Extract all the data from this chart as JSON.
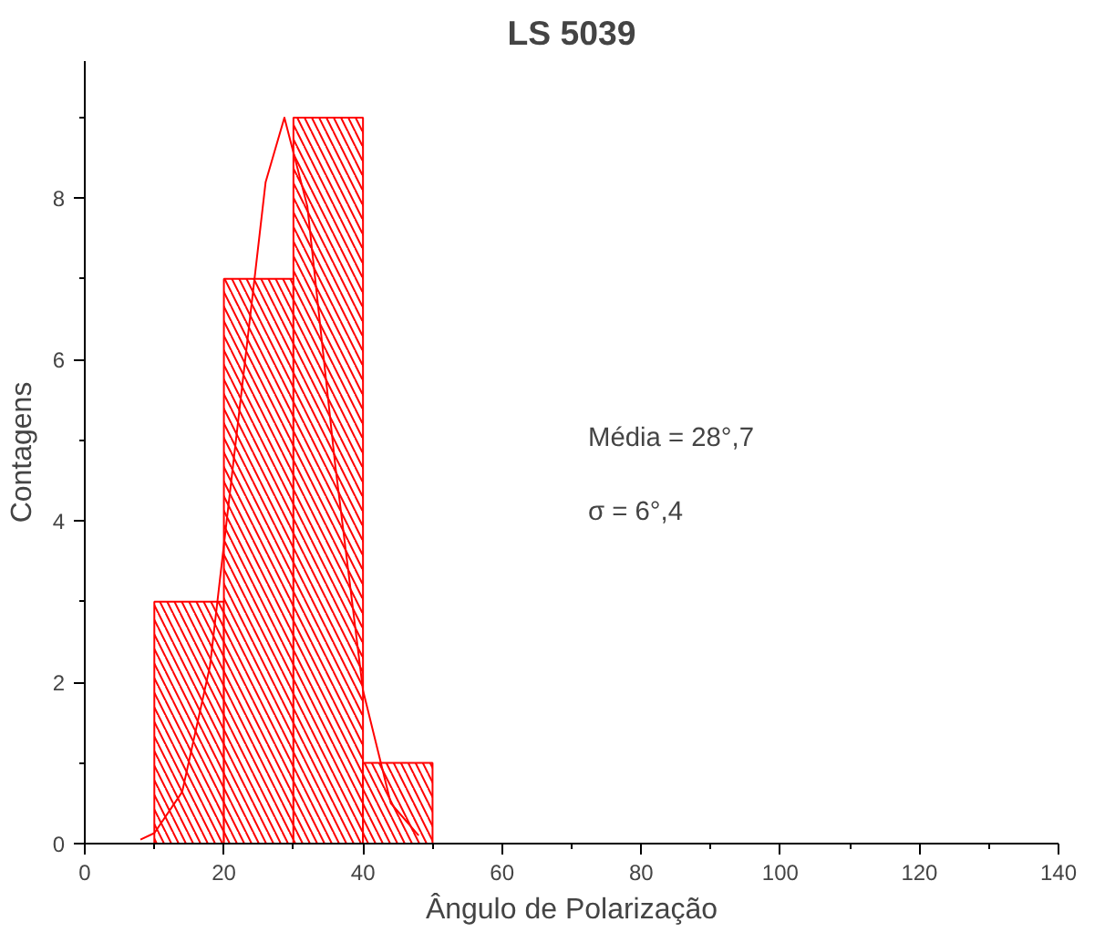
{
  "chart_data": {
    "type": "histogram",
    "title": "LS 5039",
    "xlabel": "Ângulo de Polarização",
    "ylabel": "Contagens",
    "bins": [
      10,
      20,
      30,
      40,
      50
    ],
    "values": [
      3,
      7,
      9,
      1
    ],
    "color": "#ff0000",
    "series": [
      {
        "type": "line",
        "color": "#ff0000",
        "x": [
          8,
          10,
          14,
          18,
          22,
          26,
          28.7,
          32,
          36,
          40,
          44,
          48
        ],
        "values": [
          0.05,
          0.13,
          0.64,
          2.2,
          5.2,
          8.2,
          9,
          7.9,
          4.7,
          1.9,
          0.5,
          0.1
        ]
      }
    ],
    "xlim": [
      0,
      140
    ],
    "xticks": [
      0,
      20,
      40,
      60,
      80,
      100,
      120,
      140
    ],
    "ylim": [
      0,
      9.7
    ],
    "yticks": [
      0,
      2,
      4,
      6,
      8
    ],
    "grid": false,
    "annotations": [
      "Média = 28°,7",
      "σ = 6°,4"
    ]
  }
}
